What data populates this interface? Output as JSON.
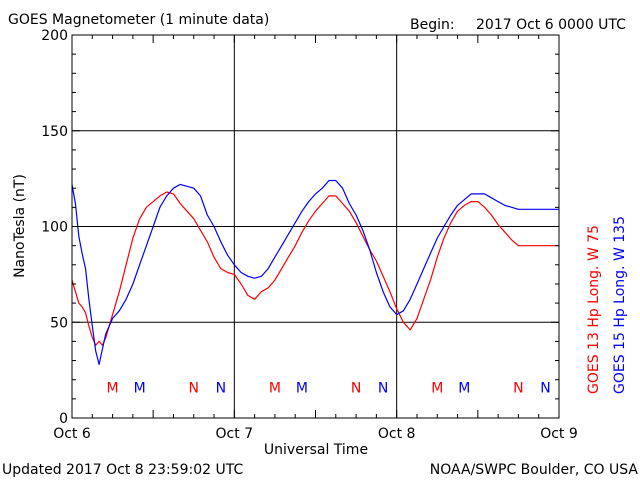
{
  "header": {
    "title": "GOES Magnetometer (1 minute data)",
    "begin_label": "Begin:",
    "begin_value": "2017 Oct 6 0000 UTC"
  },
  "footer": {
    "updated": "Updated 2017 Oct  8 23:59:02 UTC",
    "credit": "NOAA/SWPC Boulder, CO USA"
  },
  "colors": {
    "goes13": "#ff0000",
    "goes15": "#0000ff",
    "axis": "#000000"
  },
  "chart_data": {
    "type": "line",
    "title": "GOES Magnetometer (1 minute data)",
    "xlabel": "Universal Time",
    "ylabel": "NanoTesla (nT)",
    "xlim": [
      0,
      72
    ],
    "x_unit": "hours since 2017 Oct 6 0000 UTC",
    "ylim": [
      0,
      200
    ],
    "yticks": [
      0,
      50,
      100,
      150,
      200
    ],
    "xticks": [
      {
        "x": 0,
        "label": "Oct 6"
      },
      {
        "x": 24,
        "label": "Oct 7"
      },
      {
        "x": 48,
        "label": "Oct 8"
      },
      {
        "x": 72,
        "label": "Oct 9"
      }
    ],
    "grid": true,
    "series": [
      {
        "name": "GOES 13 Hp  Long. W 75",
        "color": "#ff0000",
        "x": [
          0,
          0.5,
          1,
          1.5,
          2,
          2.5,
          3,
          3.5,
          4,
          4.5,
          5,
          5.5,
          6,
          7,
          8,
          9,
          10,
          11,
          12,
          13,
          14,
          15,
          16,
          17,
          18,
          19,
          20,
          21,
          22,
          23,
          24,
          25,
          26,
          27,
          28,
          29,
          30,
          31,
          32,
          33,
          34,
          35,
          36,
          37,
          38,
          39,
          40,
          41,
          42,
          43,
          44,
          45,
          46,
          47,
          48,
          49,
          50,
          51,
          52,
          53,
          54,
          55,
          56,
          57,
          58,
          59,
          60,
          61,
          62,
          63,
          64,
          65,
          66,
          67,
          68,
          69,
          70,
          71,
          72
        ],
        "y": [
          72,
          66,
          60,
          58,
          55,
          48,
          42,
          38,
          40,
          38,
          42,
          48,
          54,
          66,
          80,
          94,
          104,
          110,
          113,
          116,
          118,
          117,
          112,
          108,
          104,
          98,
          92,
          84,
          78,
          76,
          75,
          70,
          64,
          62,
          66,
          68,
          72,
          78,
          84,
          90,
          97,
          103,
          108,
          112,
          116,
          116,
          112,
          108,
          102,
          95,
          88,
          82,
          74,
          66,
          57,
          50,
          46,
          52,
          62,
          72,
          84,
          94,
          102,
          108,
          111,
          113,
          113,
          110,
          106,
          101,
          97,
          93,
          90,
          90,
          90,
          90,
          90,
          90,
          90
        ]
      },
      {
        "name": "GOES 15 Hp  Long. W 135",
        "color": "#0000ff",
        "x": [
          0,
          0.5,
          1,
          1.5,
          2,
          2.5,
          3,
          3.5,
          4,
          4.5,
          5,
          5.5,
          6,
          7,
          8,
          9,
          10,
          11,
          12,
          13,
          14,
          15,
          16,
          17,
          18,
          19,
          20,
          21,
          22,
          23,
          24,
          25,
          26,
          27,
          28,
          29,
          30,
          31,
          32,
          33,
          34,
          35,
          36,
          37,
          38,
          39,
          40,
          41,
          42,
          43,
          44,
          45,
          46,
          47,
          48,
          49,
          50,
          51,
          52,
          53,
          54,
          55,
          56,
          57,
          58,
          59,
          60,
          61,
          62,
          63,
          64,
          65,
          66,
          67,
          68,
          69,
          70,
          71,
          72
        ],
        "y": [
          122,
          112,
          95,
          86,
          78,
          62,
          48,
          35,
          28,
          36,
          44,
          48,
          52,
          56,
          62,
          70,
          80,
          90,
          100,
          110,
          116,
          120,
          122,
          121,
          120,
          116,
          106,
          100,
          92,
          85,
          80,
          76,
          74,
          73,
          74,
          78,
          84,
          90,
          96,
          102,
          108,
          113,
          117,
          120,
          124,
          124,
          120,
          112,
          106,
          98,
          88,
          76,
          66,
          58,
          54,
          56,
          62,
          70,
          78,
          86,
          94,
          100,
          106,
          111,
          114,
          117,
          117,
          117,
          115,
          113,
          111,
          110,
          109,
          109,
          109,
          109,
          109,
          109,
          109
        ]
      }
    ],
    "markers": [
      {
        "label": "M",
        "x": 6.0,
        "series": 0
      },
      {
        "label": "M",
        "x": 10.0,
        "series": 1
      },
      {
        "label": "N",
        "x": 18.0,
        "series": 0
      },
      {
        "label": "N",
        "x": 22.0,
        "series": 1
      },
      {
        "label": "M",
        "x": 30.0,
        "series": 0
      },
      {
        "label": "M",
        "x": 34.0,
        "series": 1
      },
      {
        "label": "N",
        "x": 42.0,
        "series": 0
      },
      {
        "label": "N",
        "x": 46.0,
        "series": 1
      },
      {
        "label": "M",
        "x": 54.0,
        "series": 0
      },
      {
        "label": "M",
        "x": 58.0,
        "series": 1
      },
      {
        "label": "N",
        "x": 66.0,
        "series": 0
      },
      {
        "label": "N",
        "x": 70.0,
        "series": 1
      }
    ],
    "marker_y": 16
  }
}
